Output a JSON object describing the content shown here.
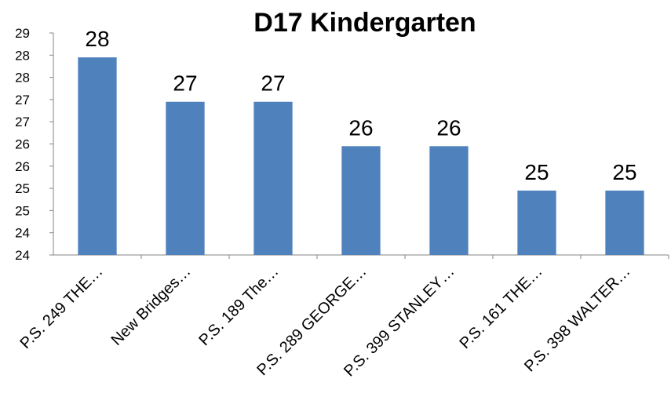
{
  "chart_data": {
    "type": "bar",
    "title": "D17 Kindergarten",
    "categories": [
      "P.S. 249 THE…",
      "New Bridges…",
      "P.S. 189 The…",
      "P.S. 289 GEORGE…",
      "P.S. 399 STANLEY…",
      "P.S. 161 THE…",
      "P.S. 398 WALTER…"
    ],
    "values": [
      28.45,
      27.45,
      27.45,
      26.45,
      26.45,
      25.45,
      25.45
    ],
    "value_labels": [
      "28",
      "27",
      "27",
      "26",
      "26",
      "25",
      "25"
    ],
    "color": "#4f81bd",
    "ylim": [
      24,
      29
    ],
    "yticks": [
      24,
      {
        "value": 24.5,
        "label": "24"
      },
      25,
      {
        "value": 25.5,
        "label": "25"
      },
      26,
      {
        "value": 26.5,
        "label": "26"
      },
      27,
      {
        "value": 27.5,
        "label": "27"
      },
      28,
      {
        "value": 28.5,
        "label": "28"
      },
      29
    ],
    "grid": false
  }
}
